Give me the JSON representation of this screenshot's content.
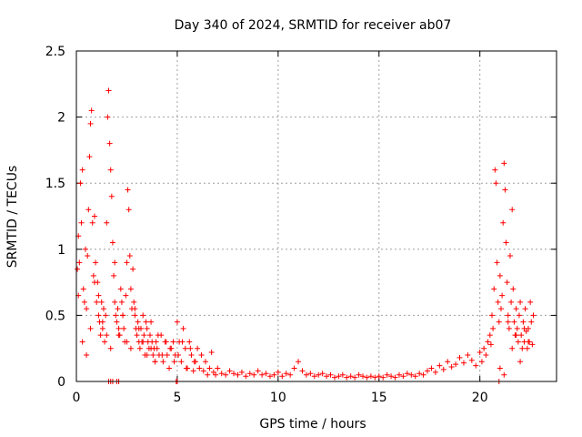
{
  "chart_data": {
    "type": "scatter",
    "title": "Day 340 of 2024, SRMTID for receiver ab07",
    "xlabel": "GPS time / hours",
    "ylabel": "SRMTID / TECUs",
    "xlim": [
      0,
      23.8
    ],
    "ylim": [
      0,
      2.5
    ],
    "xticks": [
      0,
      5,
      10,
      15,
      20
    ],
    "yticks": [
      0,
      0.5,
      1,
      1.5,
      2,
      2.5
    ],
    "grid": true,
    "marker": "plus",
    "color": "#ff0000",
    "series": [
      {
        "name": "SRMTID",
        "x": [
          0.05,
          0.1,
          0.15,
          0.2,
          0.25,
          0.3,
          0.35,
          0.4,
          0.45,
          0.5,
          0.55,
          0.6,
          0.65,
          0.7,
          0.75,
          0.8,
          0.85,
          0.9,
          0.95,
          1.0,
          1.05,
          1.1,
          1.15,
          1.2,
          1.25,
          1.3,
          1.35,
          1.4,
          1.45,
          1.5,
          1.55,
          1.6,
          1.65,
          1.7,
          1.75,
          1.8,
          1.85,
          1.9,
          1.95,
          2.0,
          2.05,
          2.1,
          2.15,
          2.2,
          2.25,
          2.3,
          2.35,
          2.4,
          2.45,
          2.5,
          2.55,
          2.6,
          2.65,
          2.7,
          2.75,
          2.8,
          2.85,
          2.9,
          2.95,
          3.0,
          3.05,
          3.1,
          3.15,
          3.2,
          3.25,
          3.3,
          3.35,
          3.4,
          3.45,
          3.5,
          3.55,
          3.6,
          3.65,
          3.7,
          3.75,
          3.8,
          3.85,
          3.9,
          3.95,
          4.0,
          4.1,
          4.2,
          4.3,
          4.4,
          4.5,
          4.6,
          4.7,
          4.8,
          4.9,
          5.0,
          5.1,
          5.2,
          5.3,
          5.4,
          5.5,
          5.6,
          5.7,
          5.8,
          5.9,
          6.0,
          6.1,
          6.2,
          6.3,
          6.4,
          6.5,
          6.6,
          6.7,
          6.8,
          6.9,
          7.0,
          7.2,
          7.4,
          7.6,
          7.8,
          8.0,
          8.2,
          8.4,
          8.6,
          8.8,
          9.0,
          9.2,
          9.4,
          9.6,
          9.8,
          10.0,
          10.2,
          10.4,
          10.6,
          10.8,
          11.0,
          11.2,
          11.4,
          11.6,
          11.8,
          12.0,
          12.2,
          12.4,
          12.6,
          12.8,
          13.0,
          13.2,
          13.4,
          13.6,
          13.8,
          14.0,
          14.2,
          14.4,
          14.6,
          14.8,
          15.0,
          15.2,
          15.4,
          15.6,
          15.8,
          16.0,
          16.2,
          16.4,
          16.6,
          16.8,
          17.0,
          17.2,
          17.4,
          17.6,
          17.8,
          18.0,
          18.2,
          18.4,
          18.6,
          18.8,
          19.0,
          19.2,
          19.4,
          19.6,
          19.8,
          20.0,
          20.1,
          20.2,
          20.3,
          20.4,
          20.5,
          20.55,
          20.6,
          20.65,
          20.7,
          20.75,
          20.8,
          20.85,
          20.9,
          20.95,
          21.0,
          21.05,
          21.1,
          21.15,
          21.2,
          21.25,
          21.3,
          21.35,
          21.4,
          21.45,
          21.5,
          21.55,
          21.6,
          21.65,
          21.7,
          21.75,
          21.8,
          21.85,
          21.9,
          21.95,
          22.0,
          22.05,
          22.1,
          22.15,
          22.2,
          22.25,
          22.3,
          22.35,
          22.4,
          22.45,
          22.5,
          22.55,
          22.6,
          22.65,
          0.1,
          0.3,
          0.5,
          0.7,
          0.9,
          1.1,
          1.3,
          1.5,
          1.7,
          1.9,
          2.1,
          2.3,
          2.5,
          2.7,
          2.9,
          3.1,
          3.3,
          3.5,
          3.7,
          3.9,
          4.05,
          4.25,
          4.45,
          4.65,
          4.85,
          5.05,
          5.25,
          5.45,
          5.65,
          5.85,
          21.0,
          21.2,
          21.4,
          21.6,
          21.8,
          22.0,
          22.2,
          22.4,
          1.6,
          1.7,
          1.8,
          2.0,
          2.1,
          4.95,
          5.0,
          20.95
        ],
        "y": [
          0.85,
          1.1,
          0.9,
          1.5,
          1.2,
          1.6,
          0.7,
          0.6,
          1.0,
          0.55,
          0.95,
          1.3,
          1.7,
          1.95,
          2.05,
          1.2,
          0.8,
          1.25,
          0.9,
          0.6,
          0.75,
          0.5,
          0.45,
          0.35,
          0.6,
          0.4,
          0.55,
          0.3,
          0.5,
          1.2,
          2.0,
          2.2,
          1.8,
          1.6,
          1.4,
          1.05,
          0.8,
          0.6,
          0.5,
          0.45,
          0.55,
          0.4,
          0.35,
          0.7,
          0.6,
          0.5,
          0.4,
          0.3,
          0.65,
          0.9,
          1.45,
          1.3,
          0.95,
          0.7,
          0.55,
          0.85,
          0.6,
          0.5,
          0.4,
          0.35,
          0.45,
          0.3,
          0.25,
          0.4,
          0.3,
          0.5,
          0.35,
          0.2,
          0.45,
          0.4,
          0.3,
          0.25,
          0.35,
          0.45,
          0.3,
          0.2,
          0.25,
          0.15,
          0.3,
          0.25,
          0.2,
          0.35,
          0.15,
          0.3,
          0.2,
          0.1,
          0.25,
          0.3,
          0.2,
          0.45,
          0.3,
          0.15,
          0.4,
          0.25,
          0.1,
          0.3,
          0.2,
          0.08,
          0.15,
          0.25,
          0.1,
          0.2,
          0.08,
          0.15,
          0.05,
          0.1,
          0.22,
          0.07,
          0.05,
          0.1,
          0.06,
          0.05,
          0.08,
          0.06,
          0.05,
          0.07,
          0.04,
          0.06,
          0.05,
          0.08,
          0.05,
          0.06,
          0.04,
          0.05,
          0.07,
          0.04,
          0.06,
          0.05,
          0.1,
          0.15,
          0.08,
          0.05,
          0.06,
          0.04,
          0.05,
          0.06,
          0.04,
          0.05,
          0.03,
          0.04,
          0.05,
          0.03,
          0.04,
          0.03,
          0.05,
          0.04,
          0.03,
          0.04,
          0.03,
          0.04,
          0.03,
          0.05,
          0.04,
          0.03,
          0.05,
          0.04,
          0.06,
          0.05,
          0.04,
          0.06,
          0.05,
          0.08,
          0.1,
          0.07,
          0.12,
          0.09,
          0.15,
          0.11,
          0.13,
          0.18,
          0.14,
          0.2,
          0.16,
          0.12,
          0.22,
          0.15,
          0.25,
          0.2,
          0.3,
          0.35,
          0.28,
          0.5,
          0.4,
          0.7,
          1.6,
          1.5,
          0.9,
          0.6,
          0.45,
          0.8,
          0.55,
          0.65,
          1.2,
          1.65,
          1.45,
          1.05,
          0.75,
          0.5,
          0.4,
          0.95,
          0.6,
          1.3,
          0.7,
          0.45,
          0.35,
          0.55,
          0.4,
          0.3,
          0.5,
          0.6,
          0.35,
          0.25,
          0.45,
          0.3,
          0.55,
          0.38,
          0.25,
          0.4,
          0.3,
          0.6,
          0.45,
          0.28,
          0.5,
          0.65,
          0.3,
          0.2,
          0.4,
          0.75,
          0.65,
          0.45,
          0.35,
          0.25,
          0.9,
          0.35,
          0.5,
          0.3,
          0.25,
          0.55,
          0.4,
          0.3,
          0.2,
          0.25,
          0.15,
          0.35,
          0.2,
          0.3,
          0.25,
          0.15,
          0.2,
          0.3,
          0.1,
          0.25,
          0.15,
          0.1,
          0.05,
          0.45,
          0.25,
          0.35,
          0.15,
          0.4,
          0.3,
          0.0,
          0.0,
          0.0,
          0.0,
          0.0,
          0.0,
          0.0,
          0.0
        ]
      }
    ]
  }
}
